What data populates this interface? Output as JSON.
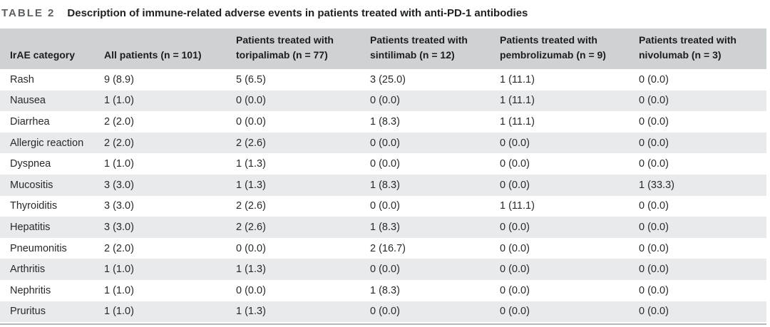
{
  "page": {
    "table_label": "TABLE 2",
    "caption": "Description of immune-related adverse events in patients treated with anti-PD-1 antibodies"
  },
  "table": {
    "columns": [
      "IrAE category",
      "All patients (n = 101)",
      "Patients treated with toripalimab (n = 77)",
      "Patients treated with sintilimab (n = 12)",
      "Patients treated with pembrolizumab (n = 9)",
      "Patients treated with nivolumab (n = 3)"
    ],
    "rows": [
      [
        "Rash",
        "9 (8.9)",
        "5 (6.5)",
        "3 (25.0)",
        "1 (11.1)",
        "0 (0.0)"
      ],
      [
        "Nausea",
        "1 (1.0)",
        "0 (0.0)",
        "0 (0.0)",
        "1 (11.1)",
        "0 (0.0)"
      ],
      [
        "Diarrhea",
        "2 (2.0)",
        "0 (0.0)",
        "1 (8.3)",
        "1 (11.1)",
        "0 (0.0)"
      ],
      [
        "Allergic reaction",
        "2 (2.0)",
        "2 (2.6)",
        "0 (0.0)",
        "0 (0.0)",
        "0 (0.0)"
      ],
      [
        "Dyspnea",
        "1 (1.0)",
        "1 (1.3)",
        "0 (0.0)",
        "0 (0.0)",
        "0 (0.0)"
      ],
      [
        "Mucositis",
        "3 (3.0)",
        "1 (1.3)",
        "1 (8.3)",
        "0 (0.0)",
        "1 (33.3)"
      ],
      [
        "Thyroiditis",
        "3 (3.0)",
        "2 (2.6)",
        "0 (0.0)",
        "1 (11.1)",
        "0 (0.0)"
      ],
      [
        "Hepatitis",
        "3 (3.0)",
        "2 (2.6)",
        "1 (8.3)",
        "0 (0.0)",
        "0 (0.0)"
      ],
      [
        "Pneumonitis",
        "2 (2.0)",
        "0 (0.0)",
        "2 (16.7)",
        "0 (0.0)",
        "0 (0.0)"
      ],
      [
        "Arthritis",
        "1 (1.0)",
        "1 (1.3)",
        "0 (0.0)",
        "0 (0.0)",
        "0 (0.0)"
      ],
      [
        "Nephritis",
        "1 (1.0)",
        "0 (0.0)",
        "1 (8.3)",
        "0 (0.0)",
        "0 (0.0)"
      ],
      [
        "Pruritus",
        "1 (1.0)",
        "1 (1.3)",
        "0 (0.0)",
        "0 (0.0)",
        "0 (0.0)"
      ]
    ]
  },
  "colors": {
    "header_bg": "#cfd2d3",
    "alt_row_bg": "#e9eaeb",
    "header_text": "#1b1d1e",
    "body_text": "#272a2b",
    "caption_text": "#1e2021",
    "table_label_text": "#5d6063",
    "bottom_rule": "#b4b9bb"
  }
}
